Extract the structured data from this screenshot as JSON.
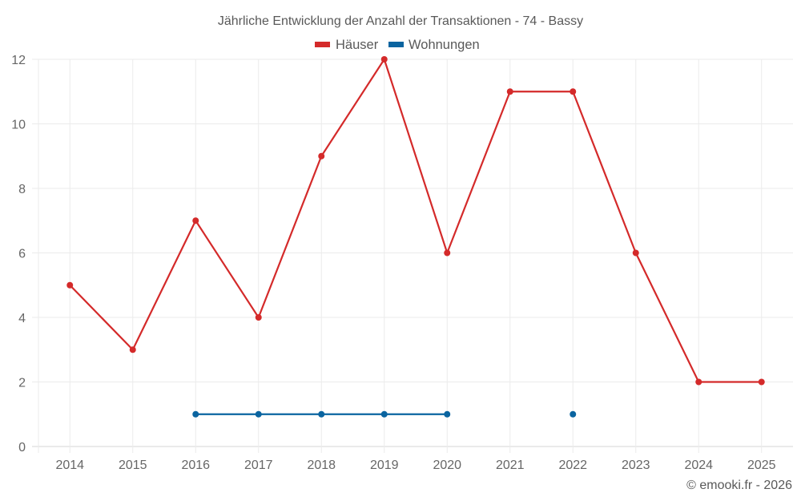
{
  "chart": {
    "title": "Jährliche Entwicklung der Anzahl der Transaktionen - 74 - Bassy",
    "credit": "© emooki.fr - 2026",
    "legend": [
      {
        "label": "Häuser",
        "color": "#d42a2a"
      },
      {
        "label": "Wohnungen",
        "color": "#0a64a0"
      }
    ]
  },
  "chart_data": {
    "type": "line",
    "title": "Jährliche Entwicklung der Anzahl der Transaktionen - 74 - Bassy",
    "xlabel": "",
    "ylabel": "",
    "categories": [
      "2014",
      "2015",
      "2016",
      "2017",
      "2018",
      "2019",
      "2020",
      "2021",
      "2022",
      "2023",
      "2024",
      "2025"
    ],
    "series": [
      {
        "name": "Häuser",
        "color": "#d42a2a",
        "values": [
          5,
          3,
          7,
          4,
          9,
          12,
          6,
          11,
          11,
          6,
          2,
          2
        ]
      },
      {
        "name": "Wohnungen",
        "color": "#0a64a0",
        "values": [
          null,
          null,
          1,
          1,
          1,
          1,
          1,
          null,
          1,
          null,
          null,
          null
        ]
      }
    ],
    "yticks": [
      0,
      2,
      4,
      6,
      8,
      10,
      12
    ],
    "ylim": [
      0,
      12
    ],
    "grid": true,
    "legend_position": "top"
  }
}
